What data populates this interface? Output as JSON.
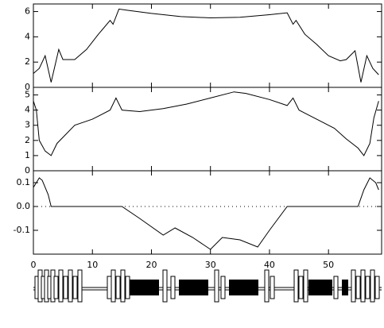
{
  "chart_data": [
    {
      "type": "line",
      "xlim": [
        0,
        59
      ],
      "xticks": [
        0,
        10,
        20,
        30,
        40,
        50
      ],
      "ylim": [
        0,
        6.6
      ],
      "yticks": [
        0,
        2,
        4,
        6
      ],
      "color": "#000000",
      "x": [
        0,
        1,
        2,
        3,
        4.3,
        5,
        7,
        9,
        11,
        13,
        13.5,
        14.5,
        16,
        20,
        25,
        30,
        35,
        40,
        43,
        44,
        44.5,
        46,
        48,
        50,
        52,
        53,
        54.5,
        55.5,
        56.5,
        57.5,
        58.5
      ],
      "values": [
        1.1,
        1.5,
        2.5,
        0.4,
        3.0,
        2.2,
        2.2,
        3.0,
        4.2,
        5.3,
        5.0,
        6.2,
        6.1,
        5.85,
        5.6,
        5.5,
        5.55,
        5.75,
        5.9,
        5.0,
        5.3,
        4.2,
        3.4,
        2.5,
        2.1,
        2.2,
        2.9,
        0.4,
        2.5,
        1.5,
        1.0
      ]
    },
    {
      "type": "line",
      "xlim": [
        0,
        59
      ],
      "xticks": [
        0,
        10,
        20,
        30,
        40,
        50
      ],
      "ylim": [
        0,
        5.5
      ],
      "yticks": [
        0,
        1,
        2,
        3,
        4,
        5
      ],
      "color": "#000000",
      "x": [
        0,
        0.5,
        1,
        2,
        3,
        4,
        5,
        7,
        10,
        13,
        14,
        15,
        18,
        22,
        26,
        30,
        34,
        36,
        40,
        43,
        44,
        45,
        48,
        51,
        53,
        55,
        56,
        57,
        57.7,
        58.5
      ],
      "values": [
        4.6,
        4.0,
        2.0,
        1.3,
        1.0,
        1.8,
        2.2,
        3.0,
        3.4,
        4.0,
        4.8,
        4.0,
        3.9,
        4.1,
        4.4,
        4.8,
        5.2,
        5.1,
        4.7,
        4.3,
        4.8,
        4.0,
        3.4,
        2.8,
        2.1,
        1.5,
        1.0,
        1.8,
        3.5,
        4.6
      ]
    },
    {
      "type": "line",
      "xlim": [
        0,
        59
      ],
      "xticks": [
        0,
        10,
        20,
        30,
        40,
        50
      ],
      "ylim": [
        -0.2,
        0.15
      ],
      "yticks": [
        0.1,
        {
          "value": 0,
          "label": "0.0"
        },
        -0.1
      ],
      "color": "#000000",
      "zero_line": true,
      "x_labels": true,
      "x": [
        0,
        1,
        1.5,
        2.5,
        3,
        15,
        18,
        22,
        24,
        27,
        30,
        32,
        35,
        38,
        40,
        43,
        55,
        56,
        57,
        58,
        58.5
      ],
      "values": [
        0.08,
        0.12,
        0.11,
        0.05,
        0.0,
        0.0,
        -0.05,
        -0.12,
        -0.09,
        -0.13,
        -0.18,
        -0.13,
        -0.14,
        -0.17,
        -0.1,
        0.0,
        0.0,
        0.07,
        0.12,
        0.1,
        0.07
      ]
    }
  ]
}
